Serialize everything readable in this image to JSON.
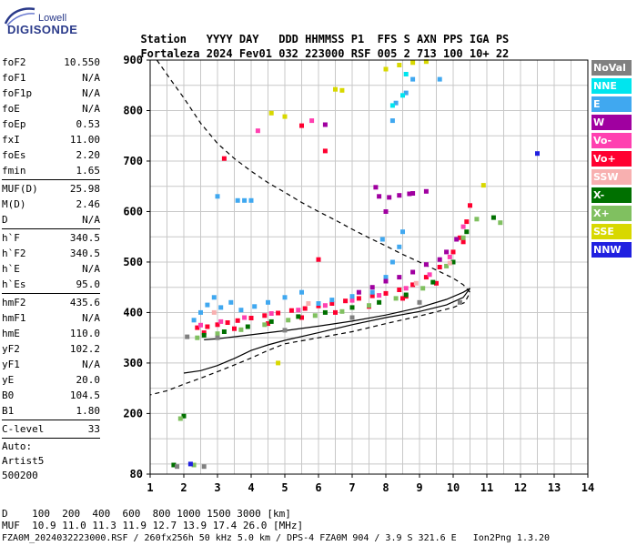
{
  "logo": {
    "top": "Lowell",
    "bottom": "DIGISONDE"
  },
  "header": {
    "row1": [
      "Station",
      "YYYY",
      "DAY",
      "DDD",
      "HHMMSS",
      "P1",
      "FFS",
      "S",
      "AXN",
      "PPS",
      "IGA",
      "PS"
    ],
    "row2": [
      "Fortaleza",
      "2024",
      "Fev01",
      "032",
      "223000",
      "RSF",
      "005",
      "2",
      "713",
      "100",
      "10+",
      "22"
    ]
  },
  "params": {
    "g1": [
      {
        "label": "foF2",
        "value": "10.550"
      },
      {
        "label": "foF1",
        "value": "N/A"
      },
      {
        "label": "foF1p",
        "value": "N/A"
      },
      {
        "label": "foE",
        "value": "N/A"
      },
      {
        "label": "foEp",
        "value": "0.53"
      },
      {
        "label": "fxI",
        "value": "11.00"
      },
      {
        "label": "foEs",
        "value": "2.20"
      },
      {
        "label": "fmin",
        "value": "1.65"
      }
    ],
    "g2": [
      {
        "label": "MUF(D)",
        "value": "25.98"
      },
      {
        "label": "M(D)",
        "value": "2.46"
      },
      {
        "label": "D",
        "value": "N/A"
      }
    ],
    "g3": [
      {
        "label": "h`F",
        "value": "340.5"
      },
      {
        "label": "h`F2",
        "value": "340.5"
      },
      {
        "label": "h`E",
        "value": "N/A"
      },
      {
        "label": "h`Es",
        "value": "95.0"
      }
    ],
    "g4": [
      {
        "label": "hmF2",
        "value": "435.6"
      },
      {
        "label": "hmF1",
        "value": "N/A"
      },
      {
        "label": "hmE",
        "value": "110.0"
      },
      {
        "label": "yF2",
        "value": "102.2"
      },
      {
        "label": "yF1",
        "value": "N/A"
      },
      {
        "label": "yE",
        "value": "20.0"
      },
      {
        "label": "B0",
        "value": "104.5"
      },
      {
        "label": "B1",
        "value": "1.80"
      }
    ],
    "g5": [
      {
        "label": "C-level",
        "value": "33"
      }
    ],
    "auto": [
      "Auto:",
      "Artist5",
      "500200"
    ]
  },
  "legend": [
    {
      "label": "NoVal",
      "color": "#808080"
    },
    {
      "label": "NNE",
      "color": "#00e5ee"
    },
    {
      "label": "E",
      "color": "#40a8f0"
    },
    {
      "label": "W",
      "color": "#a000a0"
    },
    {
      "label": "Vo-",
      "color": "#ff40b0"
    },
    {
      "label": "Vo+",
      "color": "#ff0030"
    },
    {
      "label": "SSW",
      "color": "#f8b0b0"
    },
    {
      "label": "X-",
      "color": "#007000"
    },
    {
      "label": "X+",
      "color": "#80c060"
    },
    {
      "label": "SSE",
      "color": "#d8d800"
    },
    {
      "label": "NNW",
      "color": "#2020e0"
    }
  ],
  "footer": {
    "line1_label": "D",
    "line1_values": "100  200  400  600  800 1000 1500 3000 [km]",
    "line2_label": "MUF",
    "line2_values": "10.9 11.0 11.3 11.9 12.7 13.9 17.4 26.0 [MHz]",
    "line3": "FZA0M_2024032223000.RSF / 260fx256h 50 kHz 5.0 km / DPS-4 FZA0M 904 / 3.9 S 321.6 E   Ion2Png 1.3.20"
  },
  "chart_data": {
    "type": "scatter",
    "xlim": [
      1,
      14
    ],
    "ylim": [
      80,
      900
    ],
    "xticks": [
      1,
      2,
      3,
      4,
      5,
      6,
      7,
      8,
      9,
      10,
      11,
      12,
      13,
      14
    ],
    "yticks": [
      80,
      200,
      300,
      400,
      500,
      600,
      700,
      800,
      900
    ],
    "grid": true,
    "legend_position": "right",
    "series": [
      {
        "color": "#ff0030",
        "points": [
          [
            2.4,
            370
          ],
          [
            2.7,
            372
          ],
          [
            3.0,
            376
          ],
          [
            3.3,
            380
          ],
          [
            3.6,
            384
          ],
          [
            4.0,
            389
          ],
          [
            4.4,
            394
          ],
          [
            4.8,
            399
          ],
          [
            5.2,
            404
          ],
          [
            5.6,
            408
          ],
          [
            6.0,
            413
          ],
          [
            6.4,
            418
          ],
          [
            6.8,
            423
          ],
          [
            7.2,
            428
          ],
          [
            7.6,
            433
          ],
          [
            8.0,
            438
          ],
          [
            8.4,
            445
          ],
          [
            8.8,
            455
          ],
          [
            9.2,
            470
          ],
          [
            9.6,
            490
          ],
          [
            10.0,
            520
          ],
          [
            10.2,
            548
          ],
          [
            10.4,
            580
          ],
          [
            10.5,
            612
          ],
          [
            2.6,
            360
          ],
          [
            3.5,
            368
          ],
          [
            4.5,
            378
          ],
          [
            5.5,
            390
          ],
          [
            6.5,
            400
          ],
          [
            7.5,
            412
          ],
          [
            8.5,
            428
          ],
          [
            9.5,
            458
          ],
          [
            10.3,
            540
          ],
          [
            6.2,
            720
          ],
          [
            5.5,
            770
          ],
          [
            3.2,
            705
          ],
          [
            6.0,
            505
          ],
          [
            8.6,
            432
          ]
        ]
      },
      {
        "color": "#ff40b0",
        "points": [
          [
            2.5,
            375
          ],
          [
            3.1,
            382
          ],
          [
            3.8,
            390
          ],
          [
            4.6,
            398
          ],
          [
            5.4,
            405
          ],
          [
            6.2,
            414
          ],
          [
            7.0,
            424
          ],
          [
            7.8,
            434
          ],
          [
            8.6,
            448
          ],
          [
            9.3,
            475
          ],
          [
            9.9,
            510
          ],
          [
            10.3,
            570
          ],
          [
            4.2,
            760
          ],
          [
            5.8,
            780
          ]
        ]
      },
      {
        "color": "#40a8f0",
        "points": [
          [
            2.3,
            385
          ],
          [
            2.5,
            400
          ],
          [
            2.7,
            415
          ],
          [
            2.9,
            430
          ],
          [
            3.1,
            410
          ],
          [
            3.4,
            420
          ],
          [
            3.7,
            405
          ],
          [
            4.1,
            412
          ],
          [
            4.5,
            420
          ],
          [
            5.0,
            430
          ],
          [
            5.5,
            440
          ],
          [
            6.0,
            418
          ],
          [
            6.4,
            425
          ],
          [
            7.0,
            432
          ],
          [
            7.6,
            440
          ],
          [
            8.0,
            470
          ],
          [
            8.2,
            500
          ],
          [
            8.4,
            530
          ],
          [
            7.9,
            545
          ],
          [
            8.5,
            560
          ],
          [
            3.6,
            622
          ],
          [
            3.8,
            622
          ],
          [
            4.0,
            622
          ],
          [
            8.2,
            780
          ],
          [
            8.3,
            815
          ],
          [
            8.6,
            835
          ],
          [
            8.8,
            862
          ],
          [
            9.6,
            862
          ],
          [
            3.0,
            630
          ]
        ]
      },
      {
        "color": "#a000a0",
        "points": [
          [
            7.2,
            440
          ],
          [
            7.6,
            450
          ],
          [
            8.0,
            462
          ],
          [
            8.4,
            470
          ],
          [
            8.8,
            480
          ],
          [
            9.2,
            495
          ],
          [
            9.6,
            505
          ],
          [
            9.8,
            520
          ],
          [
            10.1,
            545
          ],
          [
            8.1,
            628
          ],
          [
            8.4,
            632
          ],
          [
            8.8,
            636
          ],
          [
            9.2,
            640
          ],
          [
            7.7,
            648
          ],
          [
            7.8,
            630
          ],
          [
            8.7,
            635
          ],
          [
            6.2,
            772
          ],
          [
            8.0,
            600
          ]
        ]
      },
      {
        "color": "#007000",
        "points": [
          [
            2.6,
            355
          ],
          [
            3.2,
            362
          ],
          [
            3.9,
            372
          ],
          [
            4.6,
            382
          ],
          [
            5.4,
            392
          ],
          [
            6.2,
            400
          ],
          [
            7.0,
            410
          ],
          [
            7.8,
            420
          ],
          [
            8.6,
            435
          ],
          [
            9.4,
            460
          ],
          [
            10.0,
            500
          ],
          [
            10.4,
            560
          ],
          [
            11.2,
            588
          ],
          [
            2.0,
            195
          ],
          [
            1.7,
            98
          ]
        ]
      },
      {
        "color": "#80c060",
        "points": [
          [
            2.4,
            350
          ],
          [
            3.0,
            358
          ],
          [
            3.7,
            366
          ],
          [
            4.4,
            376
          ],
          [
            5.1,
            385
          ],
          [
            5.9,
            394
          ],
          [
            6.7,
            402
          ],
          [
            7.5,
            414
          ],
          [
            8.3,
            428
          ],
          [
            9.1,
            448
          ],
          [
            9.8,
            492
          ],
          [
            10.3,
            548
          ],
          [
            10.7,
            585
          ],
          [
            11.4,
            578
          ],
          [
            1.9,
            190
          ],
          [
            2.3,
            98
          ]
        ]
      },
      {
        "color": "#d8d800",
        "points": [
          [
            8.0,
            882
          ],
          [
            8.4,
            890
          ],
          [
            8.8,
            895
          ],
          [
            9.2,
            897
          ],
          [
            6.5,
            842
          ],
          [
            6.7,
            840
          ],
          [
            4.6,
            795
          ],
          [
            5.0,
            788
          ],
          [
            10.9,
            652
          ],
          [
            4.8,
            300
          ]
        ]
      },
      {
        "color": "#00e5ee",
        "points": [
          [
            8.2,
            810
          ],
          [
            8.5,
            830
          ],
          [
            8.6,
            872
          ]
        ]
      },
      {
        "color": "#808080",
        "points": [
          [
            2.1,
            352
          ],
          [
            3.0,
            350
          ],
          [
            5.0,
            365
          ],
          [
            7.0,
            390
          ],
          [
            9.0,
            420
          ],
          [
            10.2,
            420
          ],
          [
            1.8,
            95
          ],
          [
            2.6,
            95
          ]
        ]
      },
      {
        "color": "#f8b0b0",
        "points": [
          [
            2.9,
            400
          ],
          [
            5.7,
            418
          ],
          [
            8.9,
            458
          ],
          [
            9.9,
            498
          ]
        ]
      },
      {
        "color": "#2020e0",
        "points": [
          [
            2.2,
            100
          ],
          [
            12.5,
            715
          ]
        ]
      }
    ],
    "profile_dashed": [
      [
        1.2,
        900
      ],
      [
        1.6,
        862
      ],
      [
        2.0,
        825
      ],
      [
        2.5,
        775
      ],
      [
        3.0,
        735
      ],
      [
        3.5,
        705
      ],
      [
        4.0,
        680
      ],
      [
        4.5,
        657
      ],
      [
        5.0,
        638
      ],
      [
        5.5,
        618
      ],
      [
        6.0,
        600
      ],
      [
        6.5,
        583
      ],
      [
        7.0,
        565
      ],
      [
        7.5,
        548
      ],
      [
        8.0,
        532
      ],
      [
        8.5,
        515
      ],
      [
        9.0,
        500
      ],
      [
        9.5,
        484
      ],
      [
        10.0,
        468
      ],
      [
        10.3,
        455
      ],
      [
        10.5,
        440
      ],
      [
        10.35,
        420
      ],
      [
        10.0,
        410
      ],
      [
        9.0,
        393
      ],
      [
        8.0,
        378
      ],
      [
        7.0,
        362
      ],
      [
        6.0,
        350
      ],
      [
        5.0,
        338
      ],
      [
        4.5,
        325
      ],
      [
        4.0,
        310
      ],
      [
        3.5,
        296
      ],
      [
        3.0,
        283
      ],
      [
        2.5,
        270
      ],
      [
        2.0,
        258
      ],
      [
        1.5,
        245
      ],
      [
        1.0,
        237
      ]
    ],
    "profile_solid": [
      [
        2.6,
        346
      ],
      [
        3.0,
        348
      ],
      [
        4.0,
        356
      ],
      [
        5.0,
        364
      ],
      [
        6.0,
        373
      ],
      [
        7.0,
        383
      ],
      [
        8.0,
        395
      ],
      [
        9.0,
        410
      ],
      [
        9.8,
        426
      ],
      [
        10.3,
        440
      ],
      [
        10.5,
        448
      ],
      [
        10.3,
        430
      ],
      [
        9.8,
        415
      ],
      [
        9.0,
        402
      ],
      [
        8.0,
        390
      ],
      [
        7.0,
        376
      ],
      [
        6.0,
        360
      ],
      [
        5.0,
        345
      ],
      [
        4.5,
        336
      ],
      [
        4.0,
        325
      ],
      [
        3.5,
        309
      ],
      [
        3.0,
        295
      ],
      [
        2.5,
        285
      ],
      [
        2.0,
        280
      ]
    ]
  }
}
